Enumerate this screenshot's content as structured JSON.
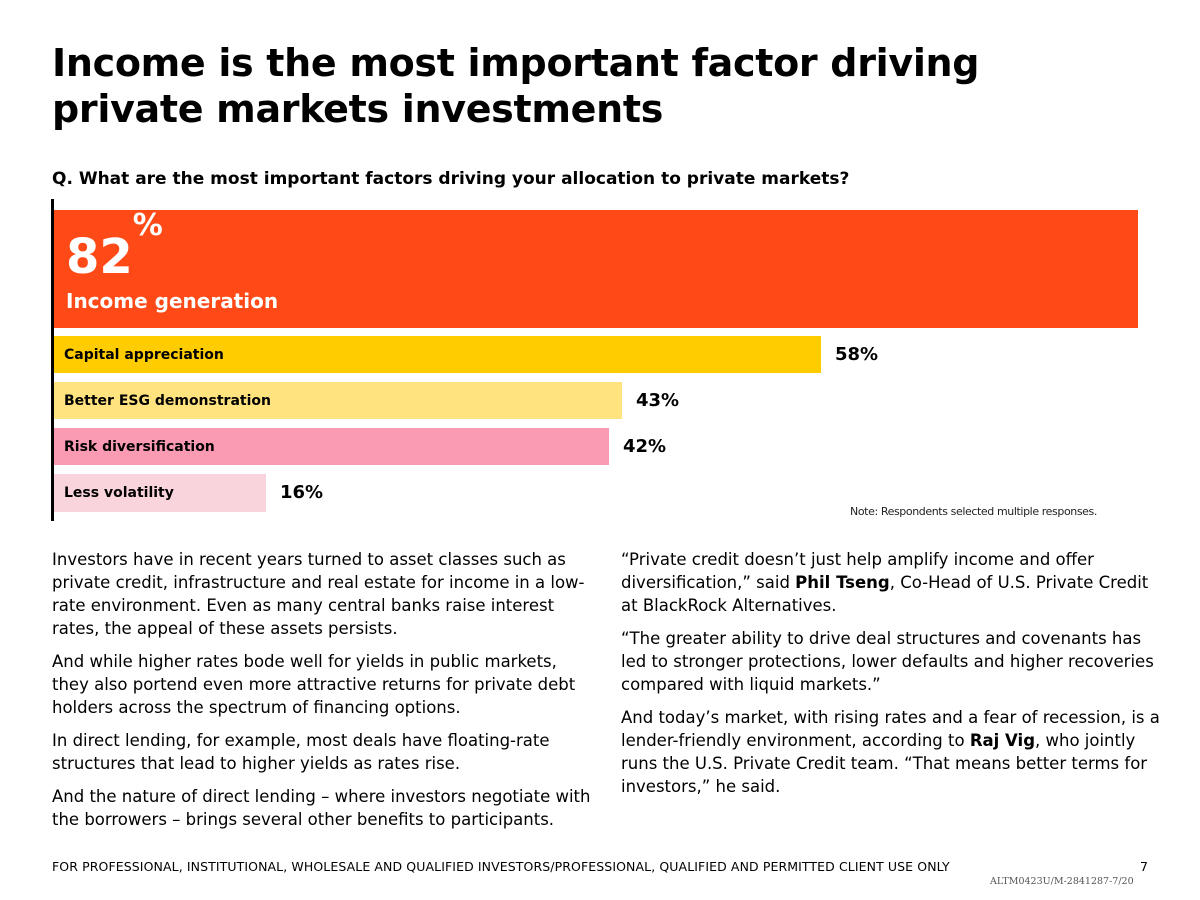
{
  "title": "Income is the most important factor driving private markets investments",
  "question": "Q. What are the most important factors driving your allocation to private markets?",
  "chart_data": {
    "type": "bar",
    "orientation": "horizontal",
    "categories": [
      "Income generation",
      "Capital appreciation",
      "Better ESG demonstration",
      "Risk diversification",
      "Less volatility"
    ],
    "values": [
      82,
      58,
      43,
      42,
      16
    ],
    "value_labels": [
      "82",
      "58%",
      "43%",
      "42%",
      "16%"
    ],
    "value_suffix_top": "%",
    "colors": [
      "#ff4a17",
      "#ffcc00",
      "#ffe37f",
      "#fb9ab3",
      "#fad4dc"
    ],
    "xlim": [
      0,
      82
    ],
    "note": "Note: Respondents selected multiple responses."
  },
  "body": {
    "left": [
      "Investors have in recent years turned to asset classes such as private credit, infrastructure and real estate for income in a low-rate environment. Even as many central banks raise interest rates, the appeal of these assets persists.",
      "And while higher rates bode well for yields in public markets, they also portend even more attractive returns for private debt holders across the spectrum of financing options.",
      "In direct lending, for example, most deals have floating-rate structures that lead to higher yields as rates rise.",
      "And the nature of direct lending – where investors negotiate with the borrowers – brings several other benefits to participants."
    ],
    "right": {
      "p1_before": "“Private credit doesn’t just help amplify income and offer diversification,” said ",
      "p1_name": "Phil Tseng",
      "p1_after": ", Co-Head of U.S. Private Credit at BlackRock Alternatives.",
      "p2": "“The greater ability to drive deal structures and covenants has led to stronger protections, lower defaults and higher recoveries compared with liquid markets.”",
      "p3_before": "And today’s market, with rising rates and a fear of recession, is a lender-friendly environment, according to ",
      "p3_name": "Raj Vig",
      "p3_after": ", who jointly runs the U.S. Private Credit team. “That means better terms for investors,” he said."
    }
  },
  "footer": {
    "disclaimer": "FOR PROFESSIONAL, INSTITUTIONAL, WHOLESALE AND QUALIFIED INVESTORS/PROFESSIONAL, QUALIFIED AND PERMITTED CLIENT USE ONLY",
    "page_number": "7",
    "code": "ALTM0423U/M-2841287-7/20"
  }
}
